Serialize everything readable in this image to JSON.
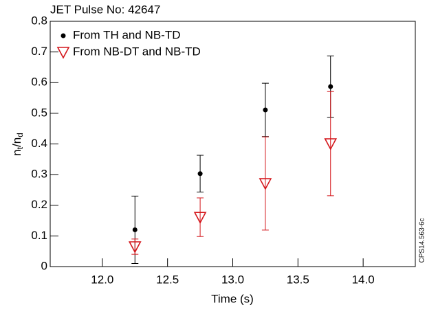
{
  "chart_data": {
    "type": "scatter",
    "title": "JET Pulse No: 42647",
    "x_label": "Time (s)",
    "y_label": [
      "n",
      "t",
      "/n",
      "d"
    ],
    "side_note": "CPS14.563-6c",
    "xlim": [
      11.6,
      14.4
    ],
    "xticks": [
      {
        "value": 12,
        "label": "12.0"
      },
      {
        "value": 12.5,
        "label": "12.5"
      },
      {
        "value": 13,
        "label": "13.0"
      },
      {
        "value": 13.5,
        "label": "13.5"
      },
      {
        "value": 14,
        "label": "14.0"
      }
    ],
    "ylim": [
      0,
      0.8
    ],
    "yticks": [
      0,
      0.1,
      0.2,
      0.3,
      0.4,
      0.5,
      0.6,
      0.7,
      0.8
    ],
    "legend": "top-left",
    "series": [
      {
        "name": "From TH and NB-TD",
        "color": "#000000",
        "marker": "circle",
        "x": [
          12.25,
          12.75,
          13.25,
          13.75
        ],
        "values": [
          0.12,
          0.303,
          0.511,
          0.587
        ],
        "errors": [
          0.11,
          0.06,
          0.087,
          0.1
        ]
      },
      {
        "name": "From NB-DT and NB-TD",
        "color": "#d4161b",
        "marker": "triangle-down",
        "x": [
          12.25,
          12.75,
          13.25,
          13.75
        ],
        "values": [
          0.065,
          0.161,
          0.271,
          0.401
        ],
        "errors": [
          0.025,
          0.063,
          0.152,
          0.17
        ]
      }
    ]
  }
}
